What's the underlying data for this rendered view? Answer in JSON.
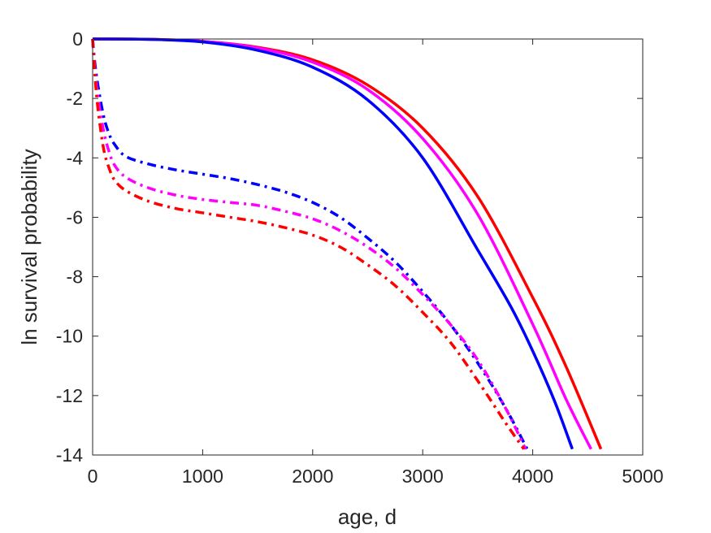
{
  "chart_data": {
    "type": "line",
    "title": "",
    "xlabel": "age, d",
    "ylabel": "ln survival probability",
    "xlim": [
      0,
      5000
    ],
    "ylim": [
      -14,
      0
    ],
    "xticks": [
      0,
      1000,
      2000,
      3000,
      4000,
      5000
    ],
    "yticks": [
      0,
      -2,
      -4,
      -6,
      -8,
      -10,
      -12,
      -14
    ],
    "grid": false,
    "legend": "none",
    "series": [
      {
        "color": "#ff0000",
        "style": "solid",
        "x": [
          0,
          500,
          1000,
          1500,
          2000,
          2500,
          3000,
          3500,
          4000,
          4300,
          4620
        ],
        "y": [
          0,
          -0.01,
          -0.08,
          -0.28,
          -0.7,
          -1.55,
          -3.0,
          -5.3,
          -8.7,
          -11.0,
          -13.8
        ]
      },
      {
        "color": "#ff00ff",
        "style": "solid",
        "x": [
          0,
          500,
          1000,
          1500,
          2000,
          2500,
          3000,
          3500,
          4000,
          4300,
          4530
        ],
        "y": [
          0,
          -0.01,
          -0.08,
          -0.3,
          -0.78,
          -1.7,
          -3.35,
          -5.9,
          -9.6,
          -12.1,
          -13.8
        ]
      },
      {
        "color": "#0000ff",
        "style": "solid",
        "x": [
          0,
          500,
          1000,
          1500,
          2000,
          2500,
          3000,
          3500,
          3800,
          4000,
          4200,
          4360
        ],
        "y": [
          0,
          -0.01,
          -0.1,
          -0.38,
          -0.95,
          -2.05,
          -4.0,
          -7.1,
          -9.0,
          -10.5,
          -12.2,
          -13.8
        ]
      },
      {
        "color": "#0000ff",
        "style": "dashdot",
        "x": [
          0,
          20,
          50,
          100,
          150,
          200,
          300,
          500,
          750,
          1000,
          1250,
          1500,
          1750,
          2000,
          2250,
          2500,
          2750,
          3000,
          3250,
          3500,
          3750,
          3950
        ],
        "y": [
          0,
          -0.8,
          -1.6,
          -2.6,
          -3.2,
          -3.55,
          -3.95,
          -4.2,
          -4.4,
          -4.55,
          -4.7,
          -4.9,
          -5.15,
          -5.5,
          -6.0,
          -6.7,
          -7.5,
          -8.5,
          -9.6,
          -10.9,
          -12.4,
          -13.8
        ]
      },
      {
        "color": "#ff00ff",
        "style": "dashdot",
        "x": [
          0,
          20,
          50,
          100,
          150,
          200,
          300,
          500,
          750,
          1000,
          1250,
          1500,
          1750,
          2000,
          2250,
          2500,
          2750,
          3000,
          3250,
          3500,
          3750,
          3935
        ],
        "y": [
          0,
          -1.0,
          -2.0,
          -3.1,
          -3.8,
          -4.25,
          -4.65,
          -5.0,
          -5.25,
          -5.4,
          -5.5,
          -5.6,
          -5.8,
          -6.05,
          -6.45,
          -7.0,
          -7.7,
          -8.6,
          -9.6,
          -10.8,
          -12.4,
          -13.8
        ]
      },
      {
        "color": "#ff0000",
        "style": "dashdot",
        "x": [
          0,
          20,
          50,
          100,
          150,
          200,
          300,
          500,
          750,
          1000,
          1250,
          1500,
          1750,
          2000,
          2250,
          2500,
          2750,
          3000,
          3250,
          3500,
          3750,
          3920
        ],
        "y": [
          0,
          -1.2,
          -2.4,
          -3.7,
          -4.35,
          -4.75,
          -5.1,
          -5.45,
          -5.7,
          -5.85,
          -6.0,
          -6.15,
          -6.35,
          -6.6,
          -7.0,
          -7.6,
          -8.3,
          -9.2,
          -10.2,
          -11.5,
          -12.9,
          -13.8
        ]
      }
    ]
  }
}
